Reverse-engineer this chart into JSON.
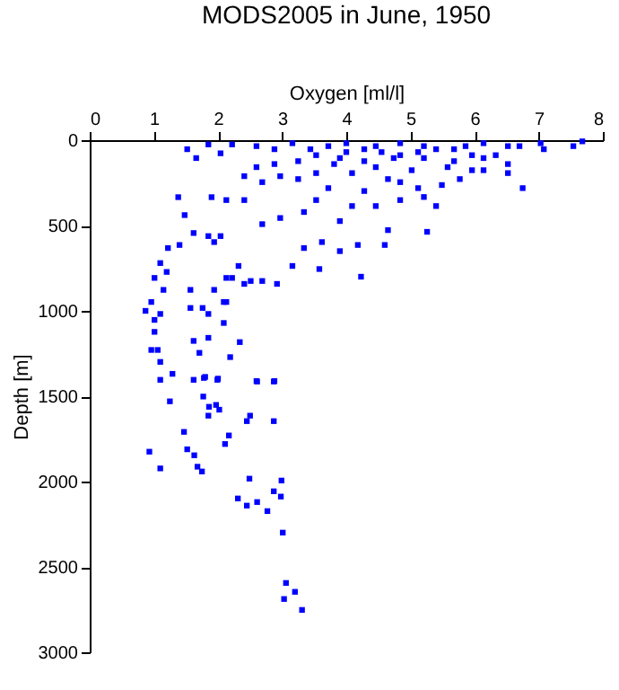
{
  "chart_data": {
    "type": "scatter",
    "title": "MODS2005 in June, 1950",
    "xlabel": "Oxygen [ml/l]",
    "ylabel": "Depth [m]",
    "xlim": [
      0,
      8
    ],
    "xticks": [
      0,
      1,
      2,
      3,
      4,
      5,
      6,
      7,
      8
    ],
    "ylim": [
      3000,
      0
    ],
    "yticks": [
      0,
      500,
      1000,
      1500,
      2000,
      2500,
      3000
    ],
    "grid": false,
    "legend": false,
    "marker": "square",
    "series": [
      {
        "color": "#0000ff",
        "x": [
          0.93,
          1.1,
          1.47,
          1.52,
          1.63,
          1.68,
          1.75,
          1.77,
          1.86,
          1.97,
          1.85,
          2.02,
          2.17,
          2.11,
          2.5,
          2.45,
          2.87,
          2.61,
          2.87,
          1.78,
          2.0,
          1.25,
          2.49,
          2.99,
          2.31,
          2.45,
          2.61,
          2.77,
          2.87,
          2.98,
          3.01,
          3.06,
          3.2,
          3.03,
          3.31,
          2.34,
          2.19,
          1.52,
          1.66,
          1.85,
          2.04,
          2.22,
          2.6,
          2.88,
          3.16,
          3.44,
          3.72,
          4.0,
          4.46,
          4.84,
          5.21,
          5.68,
          6.14,
          6.52,
          6.7,
          7.08,
          7.54,
          7.68,
          7.03,
          6.33,
          6.52,
          6.52,
          6.75,
          6.14,
          5.77,
          5.49,
          5.21,
          4.84,
          4.46,
          4.65,
          4.6,
          4.18,
          4.23,
          3.58,
          3.9,
          3.62,
          3.34,
          3.16,
          2.92,
          2.69,
          2.41,
          2.13,
          2.22,
          1.94,
          2.04,
          1.85,
          1.62,
          1.48,
          1.38,
          1.9,
          2.13,
          2.41,
          2.69,
          2.97,
          3.34,
          3.53,
          3.72,
          3.9,
          4.09,
          4.28,
          4.84,
          5.12,
          5.4,
          5.26,
          5.96,
          2.41,
          2.69,
          2.97,
          3.25,
          3.53,
          3.81,
          4.09,
          4.46,
          4.74,
          5.21,
          5.68,
          6.14,
          5.02,
          4.65,
          1.01,
          0.96,
          0.87,
          1.1,
          1.01,
          1.06,
          1.1,
          1.29,
          1.62,
          1.8,
          1.99,
          2.6,
          2.88,
          1.62,
          1.71,
          1.76,
          1.57,
          1.85,
          2.09,
          2.09,
          1.85,
          1.1,
          1.22,
          1.4,
          1.2,
          1.15,
          2.32,
          2.51,
          1.01,
          1.1,
          0.96,
          1.57,
          1.94,
          2.13,
          4.0,
          4.28,
          4.55,
          5.12,
          5.4,
          5.86,
          5.96,
          5.58,
          4.84,
          4.28,
          3.9,
          3.53,
          3.25,
          2.88,
          2.6
        ],
        "values": [
          1825,
          1923,
          1709,
          1811,
          1846,
          1913,
          1941,
          1502,
          1562,
          1551,
          1614,
          1579,
          1730,
          1780,
          1614,
          1646,
          1646,
          1414,
          1414,
          1393,
          1397,
          1530,
          1983,
          1994,
          2099,
          2141,
          2120,
          2173,
          2057,
          2088,
          2299,
          2594,
          2646,
          2688,
          2752,
          1183,
          1271,
          53,
          105,
          25,
          77,
          25,
          35,
          53,
          18,
          53,
          35,
          70,
          35,
          18,
          35,
          53,
          18,
          35,
          35,
          53,
          35,
          7,
          18,
          88,
          140,
          193,
          281,
          176,
          228,
          263,
          333,
          351,
          386,
          527,
          614,
          614,
          800,
          755,
          650,
          597,
          632,
          737,
          842,
          825,
          842,
          948,
          807,
          597,
          562,
          562,
          544,
          439,
          334,
          334,
          351,
          351,
          492,
          456,
          421,
          351,
          281,
          474,
          386,
          298,
          246,
          281,
          386,
          537,
          176,
          211,
          246,
          211,
          228,
          193,
          140,
          193,
          158,
          105,
          105,
          123,
          105,
          176,
          228,
          807,
          948,
          1000,
          1018,
          1123,
          1229,
          1404,
          1369,
          1404,
          1387,
          1404,
          1411,
          1411,
          1176,
          1246,
          983,
          983,
          1018,
          948,
          1071,
          1158,
          720,
          632,
          614,
          772,
          877,
          737,
          825,
          1053,
          1299,
          1229,
          877,
          877,
          807,
          18,
          53,
          70,
          70,
          53,
          35,
          88,
          158,
          88,
          123,
          105,
          88,
          123,
          140,
          158
        ]
      }
    ]
  }
}
